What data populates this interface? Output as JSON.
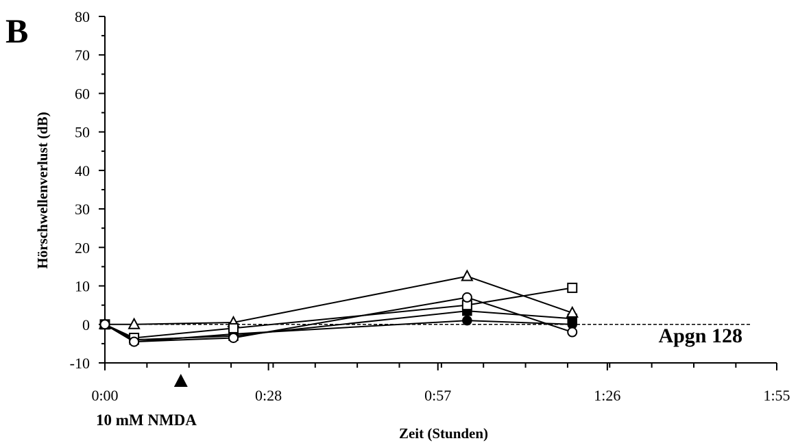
{
  "chart_data": {
    "type": "line",
    "panel_label": "B",
    "xlabel": "Zeit (Stunden)",
    "ylabel": "Hörschwellenverlust (dB)",
    "x_unit": "minutes",
    "xlim": [
      0,
      115
    ],
    "ylim": [
      -10,
      80
    ],
    "x_ticks": [
      {
        "value": 0,
        "label": "0:00"
      },
      {
        "value": 28,
        "label": "0:28"
      },
      {
        "value": 57,
        "label": "0:57"
      },
      {
        "value": 86,
        "label": "1:26"
      },
      {
        "value": 115,
        "label": "1:55"
      }
    ],
    "y_ticks": [
      -10,
      0,
      10,
      20,
      30,
      40,
      50,
      60,
      70,
      80
    ],
    "x_minor_step": 7.2,
    "y_minor_step": 5,
    "reference_line": {
      "y": 0,
      "style": "dashed"
    },
    "sample_label": "Apgn 128",
    "treatment": {
      "label": "10 mM NMDA",
      "x": 13,
      "marker": "filled-triangle"
    },
    "series": [
      {
        "marker": "filled-circle",
        "x": [
          0,
          5,
          22,
          62,
          80
        ],
        "y": [
          0,
          -4.5,
          -2.5,
          1,
          0
        ]
      },
      {
        "marker": "filled-square",
        "x": [
          0,
          5,
          22,
          62,
          80
        ],
        "y": [
          0,
          -4,
          -3,
          3.5,
          1.5
        ]
      },
      {
        "marker": "open-triangle",
        "x": [
          0,
          5,
          22,
          62,
          80
        ],
        "y": [
          0,
          0,
          0.5,
          12.5,
          3
        ]
      },
      {
        "marker": "open-square",
        "x": [
          0,
          5,
          22,
          62,
          80
        ],
        "y": [
          0,
          -3.5,
          -1,
          5,
          9.5
        ]
      },
      {
        "marker": "open-circle",
        "x": [
          0,
          5,
          22,
          62,
          80
        ],
        "y": [
          0,
          -4.5,
          -3.5,
          7,
          -2
        ]
      }
    ]
  }
}
